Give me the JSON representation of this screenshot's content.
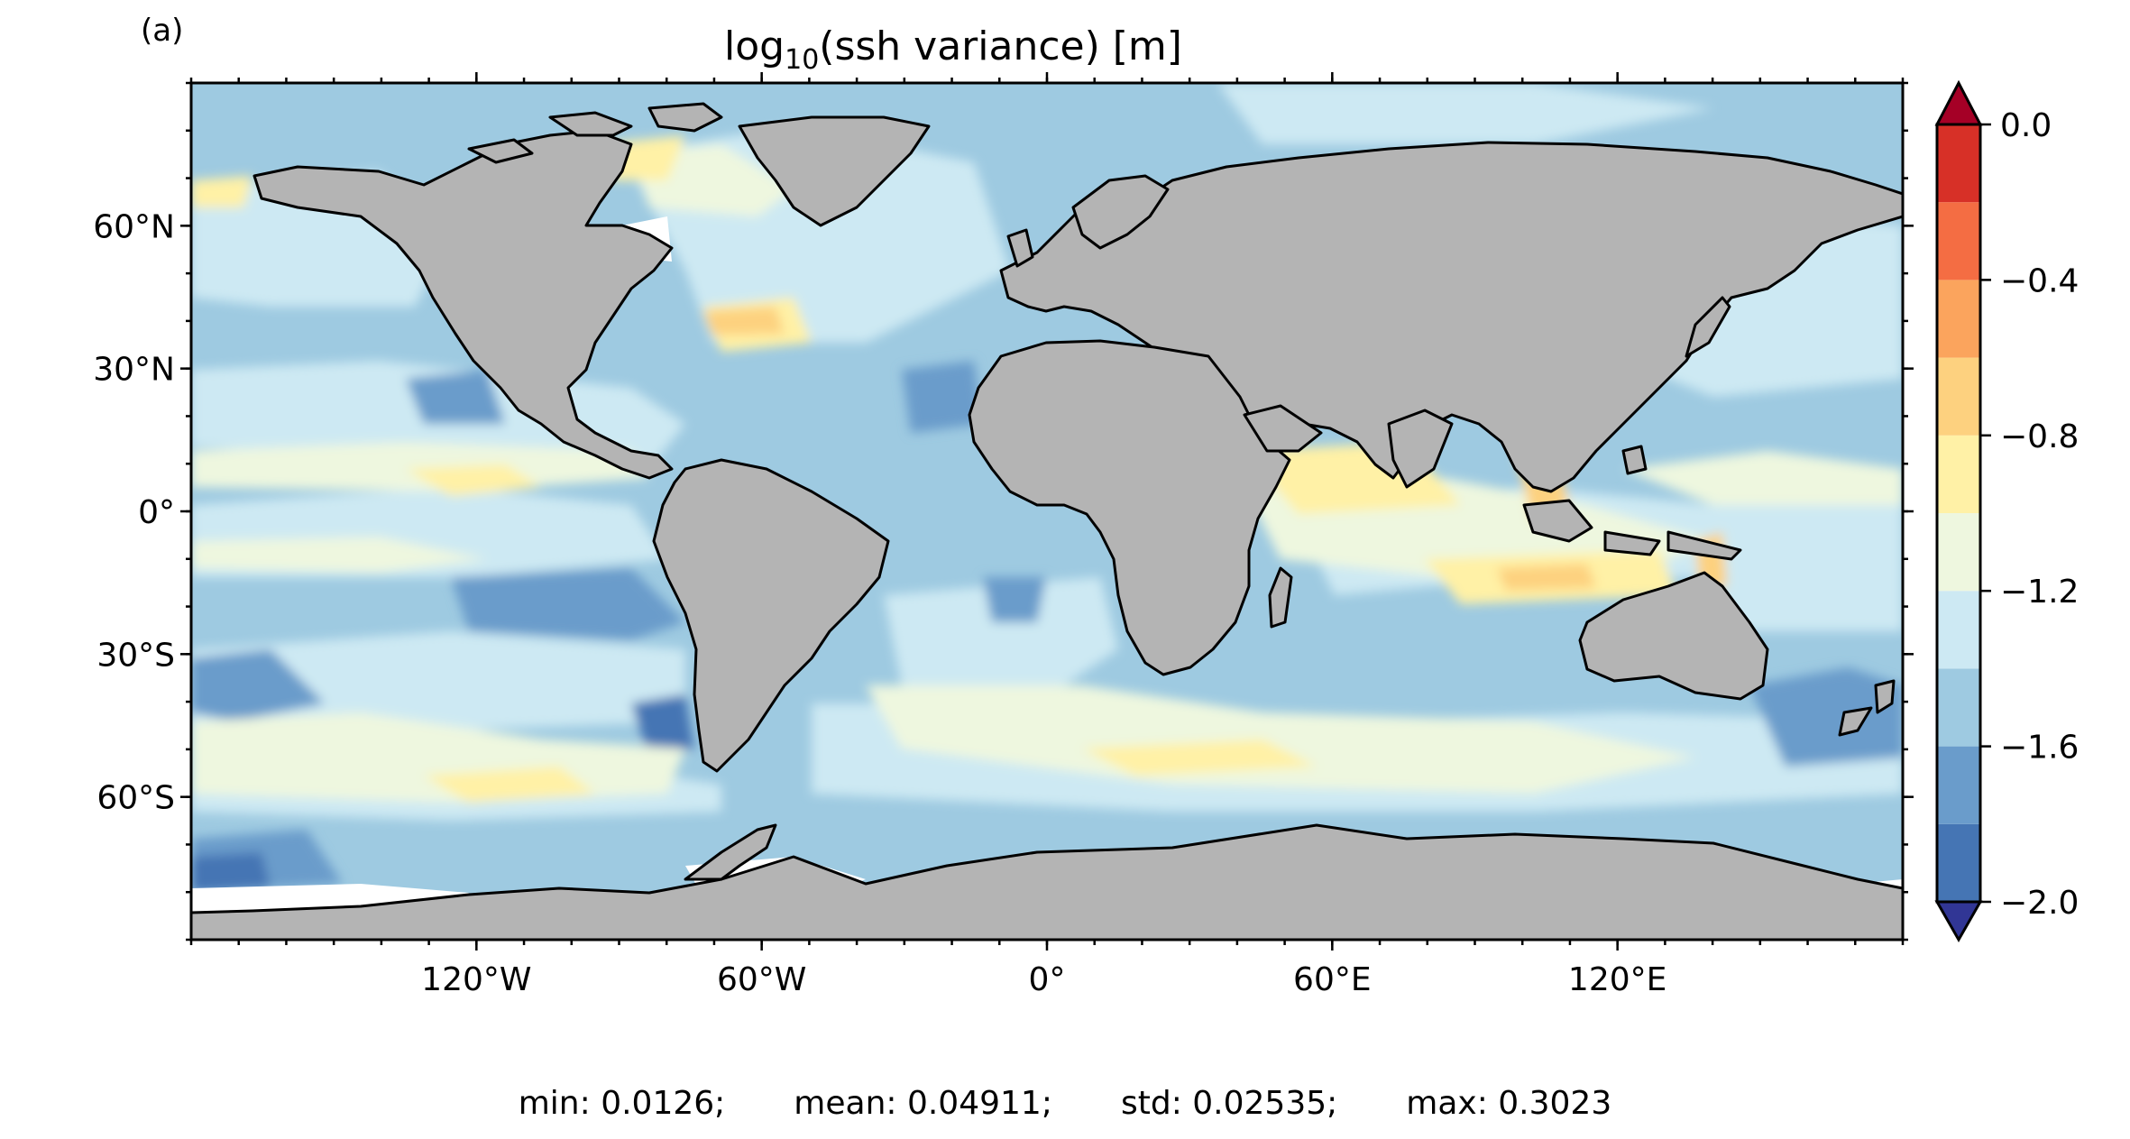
{
  "panel_label": "(a)",
  "title": {
    "prefix": "log",
    "subscript": "10",
    "suffix": "(ssh variance) [m]"
  },
  "map": {
    "projection": "PlateCarree",
    "lon_range": [
      -180,
      180
    ],
    "lat_range": [
      -90,
      90
    ],
    "land_color": "#b4b4b4",
    "coastline_color": "#000000",
    "x_ticks": [
      {
        "value": -120,
        "label": "120°W"
      },
      {
        "value": -60,
        "label": "60°W"
      },
      {
        "value": 0,
        "label": "0°"
      },
      {
        "value": 60,
        "label": "60°E"
      },
      {
        "value": 120,
        "label": "120°E"
      }
    ],
    "y_ticks": [
      {
        "value": 60,
        "label": "60°N"
      },
      {
        "value": 30,
        "label": "30°N"
      },
      {
        "value": 0,
        "label": "0°"
      },
      {
        "value": -30,
        "label": "30°S"
      },
      {
        "value": -60,
        "label": "60°S"
      }
    ],
    "minor_tick_step_deg": 10
  },
  "colorbar": {
    "vmin": -2.0,
    "vmax": 0.0,
    "levels": [
      -2.0,
      -1.8,
      -1.6,
      -1.4,
      -1.2,
      -1.0,
      -0.8,
      -0.6,
      -0.4,
      -0.2,
      0.0
    ],
    "colors": [
      "#4575b4",
      "#6a9ccb",
      "#9ecae1",
      "#cde9f3",
      "#eef7df",
      "#fff1a6",
      "#fdd17f",
      "#fba45d",
      "#f46d43",
      "#d73027"
    ],
    "under_color": "#313695",
    "over_color": "#a50026",
    "tick_labels": [
      {
        "value": 0.0,
        "label": "0.0"
      },
      {
        "value": -0.4,
        "label": "−0.4"
      },
      {
        "value": -0.8,
        "label": "−0.8"
      },
      {
        "value": -1.2,
        "label": "−1.2"
      },
      {
        "value": -1.6,
        "label": "−1.6"
      },
      {
        "value": -2.0,
        "label": "−2.0"
      }
    ],
    "extend": "both"
  },
  "stats": {
    "min": "min: 0.0126;",
    "mean": "mean: 0.04911;",
    "std": "std: 0.02535;",
    "max": "max: 0.3023"
  }
}
